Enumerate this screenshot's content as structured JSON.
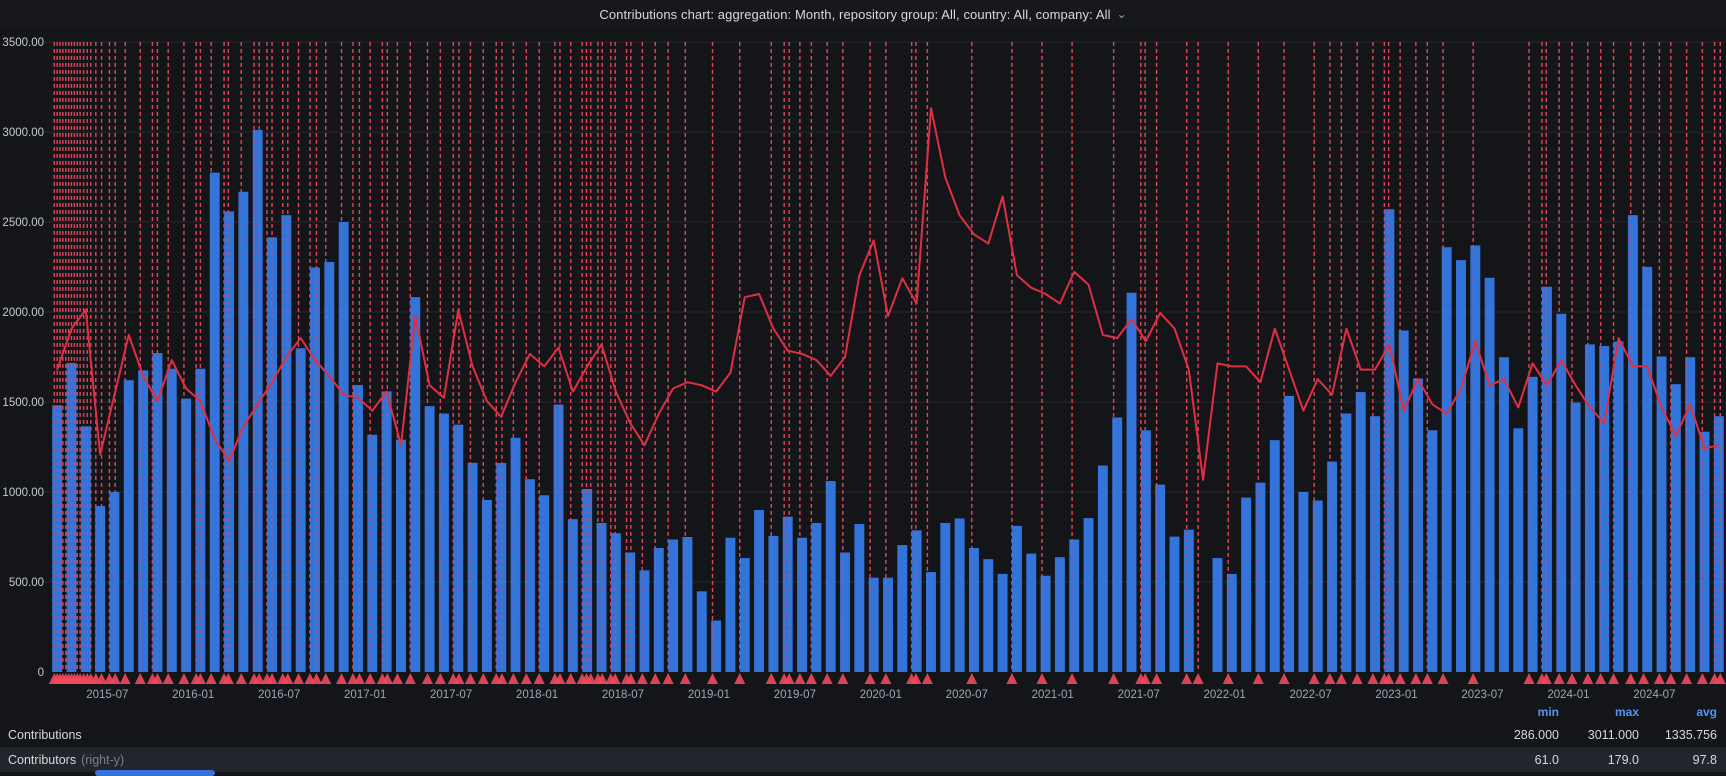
{
  "header": {
    "title": "Contributions chart: aggregation: Month, repository group: All, country: All, company: All",
    "chevron": "⌄"
  },
  "colors": {
    "background": "#141519",
    "header_bg": "#17181e",
    "bar": "#3274d9",
    "line": "#e02f44",
    "annotation": "#f2495c",
    "grid": "rgba(204,210,220,0.10)",
    "axis_text": "#9da5b8",
    "y_axis_text": "#c7cbd1",
    "legend_stat_header": "#5794f2",
    "legend_alt_row": "#22252b",
    "scroll_thumb": "#3871dc"
  },
  "legend": {
    "stat_headers": [
      "min",
      "max",
      "avg"
    ],
    "rows": [
      {
        "name": "Contributions",
        "qualifier": "",
        "min": "286.000",
        "max": "3011.000",
        "avg": "1335.756"
      },
      {
        "name": "Contributors",
        "qualifier": "(right-y)",
        "min": "61.0",
        "max": "179.0",
        "avg": "97.8"
      }
    ]
  },
  "chart_data": {
    "type": "bar",
    "subtype": "bar+line",
    "title": "Contributions chart: aggregation: Month, repository group: All, country: All, company: All",
    "start_month": "2015-03",
    "xlabel": "",
    "ylabel": "",
    "y_left": {
      "min": 0,
      "max": 3500,
      "tick_step": 500,
      "tick_labels": [
        "3500.00",
        "3000.00",
        "2500.00",
        "2000.00",
        "1500.00",
        "1000.00",
        "500.00",
        "0"
      ]
    },
    "y_right": {
      "min": 0,
      "max": 200,
      "labels_visible": false
    },
    "x_tick_labels": [
      "2015-07",
      "2016-01",
      "2016-07",
      "2017-01",
      "2017-07",
      "2018-01",
      "2018-07",
      "2019-01",
      "2019-07",
      "2020-01",
      "2020-07",
      "2021-01",
      "2021-07",
      "2022-01",
      "2022-07",
      "2023-01",
      "2023-07",
      "2024-01",
      "2024-07"
    ],
    "x_tick_indices": [
      4,
      10,
      16,
      22,
      28,
      34,
      40,
      46,
      52,
      58,
      64,
      70,
      76,
      82,
      88,
      94,
      100,
      106,
      112
    ],
    "grid": true,
    "legend_position": "bottom",
    "series": [
      {
        "name": "Contributions",
        "type": "bar",
        "axis": "left",
        "color": "#3274d9",
        "values": [
          1482,
          1717,
          1365,
          922,
          1000,
          1621,
          1676,
          1772,
          1685,
          1519,
          1685,
          2774,
          2559,
          2668,
          3011,
          2415,
          2538,
          1799,
          2247,
          2278,
          2500,
          1594,
          1318,
          1559,
          1291,
          2083,
          1477,
          1436,
          1374,
          1162,
          956,
          1161,
          1301,
          1071,
          982,
          1486,
          849,
          1017,
          828,
          771,
          664,
          565,
          689,
          736,
          750,
          448,
          286,
          746,
          633,
          900,
          756,
          863,
          746,
          828,
          1061,
          664,
          822,
          524,
          524,
          705,
          787,
          555,
          828,
          853,
          689,
          627,
          545,
          812,
          658,
          535,
          638,
          736,
          855,
          1147,
          1414,
          2107,
          1343,
          1041,
          752,
          791,
          null,
          633,
          545,
          969,
          1052,
          1288,
          1534,
          1000,
          953,
          1169,
          1436,
          1555,
          1421,
          2571,
          1897,
          1630,
          1343,
          2360,
          2288,
          2370,
          2190,
          1749,
          1354,
          1640,
          2140,
          1990,
          1497,
          1820,
          1811,
          1836,
          2538,
          2251,
          1753,
          1599,
          1749,
          1335,
          1421
        ]
      },
      {
        "name": "Contributors",
        "type": "line",
        "axis": "right",
        "color": "#e02f44",
        "values": [
          96,
          109,
          115,
          69,
          88,
          107,
          94,
          86,
          99,
          90,
          86,
          74,
          67,
          78,
          85,
          92,
          100,
          106,
          99,
          94,
          88,
          87,
          83,
          89,
          72,
          113,
          91,
          87,
          115,
          97,
          86,
          81,
          92,
          101,
          97,
          103,
          89,
          97,
          104,
          89,
          79,
          72,
          82,
          90,
          92,
          91,
          89,
          95,
          119,
          120,
          109,
          102,
          101,
          99,
          94,
          100,
          126,
          137,
          113,
          125,
          117,
          179,
          157,
          145,
          139,
          136,
          151,
          126,
          122,
          120,
          117,
          127,
          123,
          107,
          106,
          112,
          105,
          114,
          109,
          96,
          61,
          98,
          97,
          97,
          92,
          109,
          96,
          83,
          93,
          88,
          109,
          96,
          96,
          104,
          83,
          93,
          85,
          82,
          90,
          105,
          91,
          93,
          84,
          98,
          91,
          99,
          91,
          84,
          79,
          106,
          97,
          97,
          84,
          75,
          85,
          71,
          72
        ]
      }
    ],
    "annotations_x": [
      0.3,
      0.5,
      0.7,
      0.9,
      1.1,
      1.3,
      1.5,
      1.7,
      1.9,
      2.1,
      2.35,
      2.6,
      2.85,
      3.2,
      3.6,
      4.15,
      4.55,
      5.25,
      6.3,
      7.15,
      7.5,
      8.25,
      9.35,
      10.2,
      10.5,
      11.25,
      12.15,
      12.45,
      13.35,
      14.25,
      14.6,
      15.15,
      15.5,
      16.25,
      16.6,
      17.35,
      18.15,
      18.6,
      19.25,
      20.35,
      21.15,
      21.6,
      22.35,
      23.2,
      23.55,
      24.25,
      25.15,
      26.35,
      27.25,
      28.15,
      28.55,
      29.35,
      30.25,
      31.15,
      31.55,
      32.35,
      33.25,
      34.15,
      35.25,
      35.6,
      36.35,
      37.15,
      37.45,
      37.75,
      38.25,
      38.55,
      39.15,
      39.45,
      40.25,
      40.55,
      41.35,
      42.25,
      43.15,
      44.35,
      46.25,
      48.15,
      50.35,
      51.25,
      51.6,
      52.35,
      53.15,
      54.25,
      55.35,
      57.25,
      58.35,
      60.15,
      60.45,
      61.25,
      64.35,
      67.15,
      69.25,
      71.35,
      74.25,
      76.15,
      76.45,
      77.25,
      79.35,
      80.15,
      82.25,
      84.35,
      86.15,
      88.25,
      89.35,
      90.15,
      91.25,
      92.35,
      93.15,
      93.45,
      94.25,
      95.35,
      96.15,
      97.25,
      99.35,
      103.25,
      104.15,
      104.45,
      105.35,
      106.25,
      107.35,
      108.25,
      109.15,
      110.35,
      111.25,
      112.35,
      113.15,
      114.25,
      115.35,
      116.2,
      116.6
    ]
  }
}
